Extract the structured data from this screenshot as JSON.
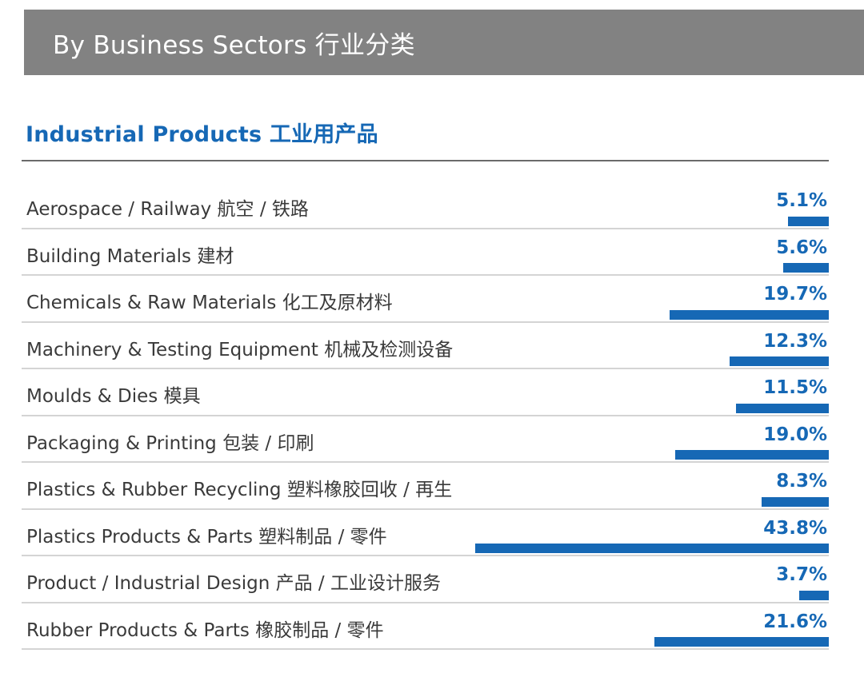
{
  "header": {
    "title": "By Business Sectors  行业分类"
  },
  "subtitle": "Industrial Products  工业用产品",
  "colors": {
    "header_bg": "#828282",
    "accent": "#1668b5",
    "text": "#3a3a3a"
  },
  "chart_data": {
    "type": "bar",
    "orientation": "horizontal",
    "categories": [
      "Aerospace / Railway  航空 / 铁路",
      "Building Materials  建材",
      "Chemicals & Raw Materials  化工及原材料",
      "Machinery & Testing Equipment  机械及检测设备",
      "Moulds & Dies  模具",
      "Packaging & Printing  包装 / 印刷",
      "Plastics & Rubber Recycling  塑料橡胶回收 / 再生",
      "Plastics Products & Parts  塑料制品 / 零件",
      "Product / Industrial Design  产品 / 工业设计服务",
      "Rubber Products & Parts  橡胶制品 / 零件"
    ],
    "values": [
      5.1,
      5.6,
      19.7,
      12.3,
      11.5,
      19.0,
      8.3,
      43.8,
      3.7,
      21.6
    ],
    "value_labels": [
      "5.1%",
      "5.6%",
      "19.7%",
      "12.3%",
      "11.5%",
      "19.0%",
      "8.3%",
      "43.8%",
      "3.7%",
      "21.6%"
    ],
    "xlim": [
      0,
      100
    ],
    "grid": false
  }
}
